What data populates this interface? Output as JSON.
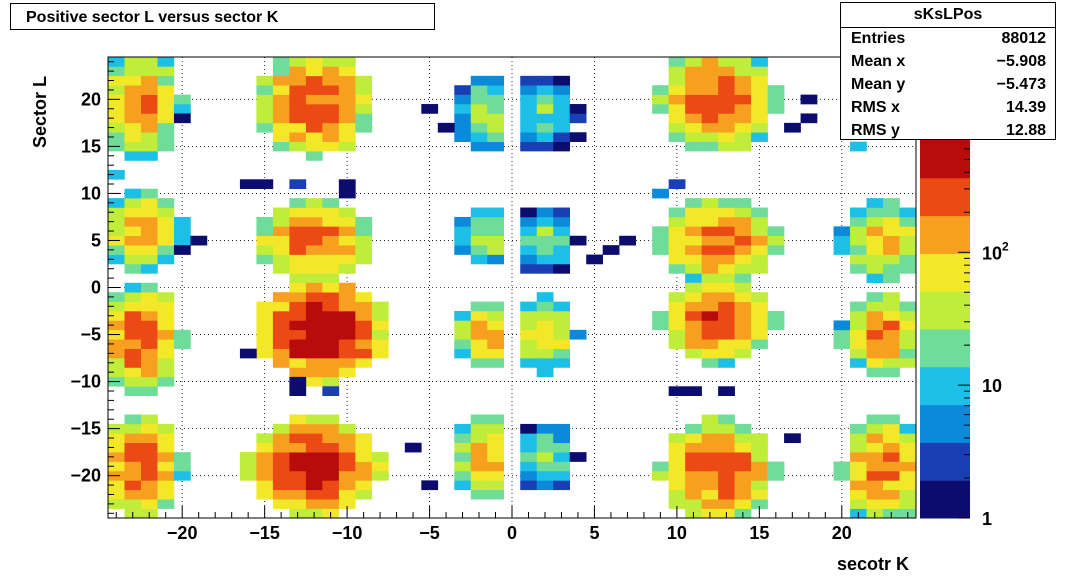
{
  "title": "Positive sector L versus sector K",
  "stats": {
    "name": "sKsLPos",
    "rows": [
      {
        "label": "Entries",
        "value": "88012"
      },
      {
        "label": "Mean x",
        "value": "−5.908"
      },
      {
        "label": "Mean y",
        "value": "−5.473"
      },
      {
        "label": "RMS x",
        "value": "14.39"
      },
      {
        "label": "RMS y",
        "value": "12.88"
      }
    ]
  },
  "chart_data": {
    "type": "heatmap",
    "title": "Positive sector L versus sector K",
    "xlabel": "secotr K",
    "ylabel": "Sector L",
    "xlim": [
      -24.5,
      24.5
    ],
    "ylim": [
      -24.5,
      24.5
    ],
    "x_ticks": [
      {
        "value": -20,
        "label": "−20"
      },
      {
        "value": -15,
        "label": "−15"
      },
      {
        "value": -10,
        "label": "−10"
      },
      {
        "value": -5,
        "label": "−5"
      },
      {
        "value": 0,
        "label": "0"
      },
      {
        "value": 5,
        "label": "5"
      },
      {
        "value": 10,
        "label": "10"
      },
      {
        "value": 15,
        "label": "15"
      },
      {
        "value": 20,
        "label": "20"
      }
    ],
    "y_ticks": [
      {
        "value": 20,
        "label": "20"
      },
      {
        "value": 15,
        "label": "15"
      },
      {
        "value": 10,
        "label": "10"
      },
      {
        "value": 5,
        "label": "5"
      },
      {
        "value": 0,
        "label": "0"
      },
      {
        "value": -5,
        "label": "−5"
      },
      {
        "value": -10,
        "label": "−10"
      },
      {
        "value": -15,
        "label": "−15"
      },
      {
        "value": -20,
        "label": "−20"
      }
    ],
    "z_scale": "log",
    "zlim": [
      1,
      700
    ],
    "z_ticks": [
      {
        "value": 1,
        "label": "1",
        "sup": ""
      },
      {
        "value": 10,
        "label": "10",
        "sup": ""
      },
      {
        "value": 100,
        "label": "10",
        "sup": "2"
      }
    ],
    "grid": true,
    "colormap": [
      "#0b0c6e",
      "#1a3fb5",
      "#0a8ad8",
      "#1cc0e6",
      "#6fdc9a",
      "#c0ec3a",
      "#f2e828",
      "#f7a020",
      "#ec4a14",
      "#b80c0c"
    ],
    "clusters": [
      {
        "center": [
          -22.5,
          19.5
        ],
        "half_width": [
          2,
          5
        ],
        "peak": 180
      },
      {
        "center": [
          -12,
          19.5
        ],
        "half_width": [
          3,
          5
        ],
        "peak": 320
      },
      {
        "center": [
          -1.5,
          18.5
        ],
        "half_width": [
          1.5,
          3.5
        ],
        "peak": 40
      },
      {
        "center": [
          2,
          18.5
        ],
        "half_width": [
          1.5,
          3.5
        ],
        "peak": 25
      },
      {
        "center": [
          12.5,
          20
        ],
        "half_width": [
          3,
          5
        ],
        "peak": 300
      },
      {
        "center": [
          -22.5,
          6
        ],
        "half_width": [
          2,
          4
        ],
        "peak": 140
      },
      {
        "center": [
          -12,
          5
        ],
        "half_width": [
          3,
          4
        ],
        "peak": 260
      },
      {
        "center": [
          -1.5,
          5.5
        ],
        "half_width": [
          1.5,
          3
        ],
        "peak": 40
      },
      {
        "center": [
          2,
          5
        ],
        "half_width": [
          1.5,
          3
        ],
        "peak": 25
      },
      {
        "center": [
          12.5,
          5
        ],
        "half_width": [
          3,
          4
        ],
        "peak": 280
      },
      {
        "center": [
          22.5,
          5
        ],
        "half_width": [
          2,
          4
        ],
        "peak": 120
      },
      {
        "center": [
          -22.5,
          -5.5
        ],
        "half_width": [
          2,
          5
        ],
        "peak": 300
      },
      {
        "center": [
          -11.5,
          -4.5
        ],
        "half_width": [
          3.5,
          5
        ],
        "peak": 650
      },
      {
        "center": [
          -1.5,
          -5
        ],
        "half_width": [
          1.5,
          3.5
        ],
        "peak": 110
      },
      {
        "center": [
          2,
          -5
        ],
        "half_width": [
          1.5,
          3.5
        ],
        "peak": 90
      },
      {
        "center": [
          12.5,
          -3.5
        ],
        "half_width": [
          3,
          4
        ],
        "peak": 280
      },
      {
        "center": [
          22.5,
          -5
        ],
        "half_width": [
          2,
          4
        ],
        "peak": 180
      },
      {
        "center": [
          -22.5,
          -19
        ],
        "half_width": [
          2,
          5
        ],
        "peak": 300
      },
      {
        "center": [
          -12,
          -19
        ],
        "half_width": [
          3.5,
          5
        ],
        "peak": 520
      },
      {
        "center": [
          -1.5,
          -18
        ],
        "half_width": [
          1.5,
          4
        ],
        "peak": 130
      },
      {
        "center": [
          2,
          -18
        ],
        "half_width": [
          1.5,
          3
        ],
        "peak": 35
      },
      {
        "center": [
          12.5,
          -19.5
        ],
        "half_width": [
          3,
          5
        ],
        "peak": 300
      },
      {
        "center": [
          22.5,
          -19.5
        ],
        "half_width": [
          2,
          5
        ],
        "peak": 230
      }
    ],
    "sparse_bins": [
      [
        -16,
        11,
        1
      ],
      [
        -15,
        11,
        1
      ],
      [
        -10,
        11,
        1
      ],
      [
        -10,
        10,
        1
      ],
      [
        -13,
        11,
        2
      ],
      [
        -13,
        -10,
        1
      ],
      [
        -13,
        -11,
        1
      ],
      [
        -11,
        -11,
        2
      ],
      [
        -16,
        -7,
        1
      ],
      [
        10,
        11,
        2
      ],
      [
        9,
        10,
        5
      ],
      [
        10,
        -11,
        1
      ],
      [
        11,
        -11,
        1
      ],
      [
        13,
        -11,
        1
      ],
      [
        17,
        -16,
        1
      ],
      [
        18,
        20,
        1
      ],
      [
        18,
        18,
        1
      ],
      [
        17,
        17,
        1
      ],
      [
        21,
        15,
        8
      ],
      [
        -20,
        4,
        1
      ],
      [
        -19,
        5,
        1
      ],
      [
        -20,
        18,
        1
      ],
      [
        6,
        4,
        1
      ],
      [
        7,
        5,
        1
      ],
      [
        5,
        3,
        1
      ],
      [
        -24,
        12,
        8
      ],
      [
        -23,
        15,
        1
      ],
      [
        -21,
        -8,
        1
      ],
      [
        -23,
        -8,
        2
      ],
      [
        -5,
        -21,
        1
      ],
      [
        -6,
        -17,
        1
      ],
      [
        -5,
        19,
        1
      ],
      [
        -4,
        17,
        1
      ],
      [
        3,
        16,
        1
      ],
      [
        4,
        16,
        1
      ]
    ]
  }
}
